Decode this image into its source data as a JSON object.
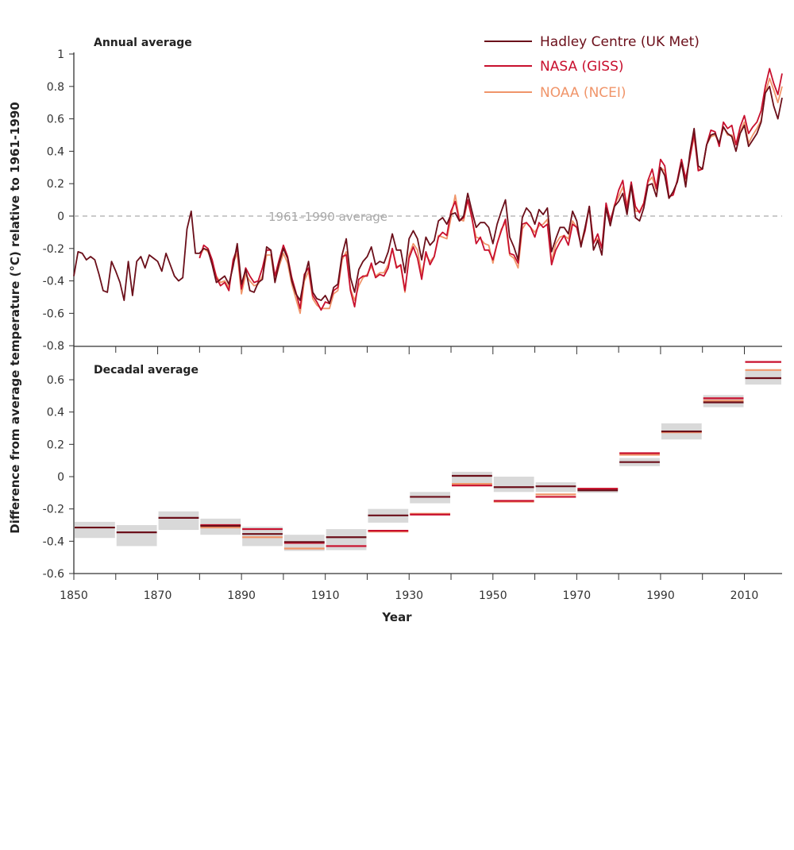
{
  "chart_data": [
    {
      "type": "line",
      "title": "Annual average",
      "xlabel": "Year",
      "ylabel": "Difference from average temperature (°C) relative to 1961-1990",
      "xlim": [
        1850,
        2019
      ],
      "ylim": [
        -0.8,
        1
      ],
      "yticks": [
        "1",
        "0.8",
        "0.6",
        "0.4",
        "0.2",
        "0",
        "-0.2",
        "-0.4",
        "-0.6",
        "-0.8"
      ],
      "reference_line": {
        "value": 0,
        "label": "1961–1990 average",
        "style": "dashed"
      },
      "legend_position": "top-right",
      "grid": false,
      "series": [
        {
          "name": "Hadley Centre (UK Met)",
          "color": "#6b0f1a",
          "start_year": 1850,
          "values": [
            -0.37,
            -0.22,
            -0.23,
            -0.27,
            -0.25,
            -0.27,
            -0.36,
            -0.46,
            -0.47,
            -0.28,
            -0.34,
            -0.41,
            -0.52,
            -0.28,
            -0.49,
            -0.28,
            -0.25,
            -0.32,
            -0.24,
            -0.26,
            -0.28,
            -0.34,
            -0.23,
            -0.3,
            -0.37,
            -0.4,
            -0.38,
            -0.08,
            0.03,
            -0.23,
            -0.23,
            -0.2,
            -0.21,
            -0.3,
            -0.41,
            -0.39,
            -0.37,
            -0.42,
            -0.31,
            -0.17,
            -0.42,
            -0.33,
            -0.46,
            -0.47,
            -0.41,
            -0.39,
            -0.19,
            -0.21,
            -0.41,
            -0.29,
            -0.2,
            -0.26,
            -0.4,
            -0.48,
            -0.52,
            -0.38,
            -0.28,
            -0.47,
            -0.51,
            -0.52,
            -0.49,
            -0.54,
            -0.44,
            -0.42,
            -0.24,
            -0.14,
            -0.38,
            -0.47,
            -0.33,
            -0.28,
            -0.25,
            -0.19,
            -0.3,
            -0.28,
            -0.29,
            -0.22,
            -0.11,
            -0.21,
            -0.21,
            -0.35,
            -0.14,
            -0.09,
            -0.14,
            -0.27,
            -0.13,
            -0.18,
            -0.15,
            -0.03,
            -0.01,
            -0.05,
            0.01,
            0.02,
            -0.03,
            0.0,
            0.14,
            0.03,
            -0.07,
            -0.04,
            -0.04,
            -0.07,
            -0.17,
            -0.05,
            0.03,
            0.1,
            -0.13,
            -0.19,
            -0.27,
            -0.01,
            0.05,
            0.02,
            -0.05,
            0.04,
            0.01,
            0.05,
            -0.22,
            -0.14,
            -0.07,
            -0.07,
            -0.11,
            0.03,
            -0.03,
            -0.19,
            -0.07,
            0.06,
            -0.21,
            -0.15,
            -0.24,
            0.05,
            -0.06,
            0.06,
            0.09,
            0.14,
            0.01,
            0.19,
            -0.01,
            -0.03,
            0.05,
            0.19,
            0.2,
            0.12,
            0.3,
            0.25,
            0.11,
            0.15,
            0.21,
            0.33,
            0.18,
            0.39,
            0.54,
            0.31,
            0.29,
            0.44,
            0.5,
            0.51,
            0.45,
            0.55,
            0.51,
            0.49,
            0.4,
            0.51,
            0.56,
            0.43,
            0.47,
            0.51,
            0.58,
            0.76,
            0.8,
            0.68,
            0.6,
            0.73
          ]
        },
        {
          "name": "NASA (GISS)",
          "color": "#c8102e",
          "start_year": 1880,
          "values": [
            -0.26,
            -0.18,
            -0.2,
            -0.27,
            -0.38,
            -0.43,
            -0.41,
            -0.46,
            -0.27,
            -0.2,
            -0.45,
            -0.32,
            -0.37,
            -0.41,
            -0.4,
            -0.32,
            -0.21,
            -0.21,
            -0.37,
            -0.27,
            -0.18,
            -0.25,
            -0.38,
            -0.47,
            -0.57,
            -0.36,
            -0.32,
            -0.49,
            -0.53,
            -0.58,
            -0.53,
            -0.54,
            -0.46,
            -0.44,
            -0.25,
            -0.24,
            -0.46,
            -0.56,
            -0.39,
            -0.37,
            -0.37,
            -0.29,
            -0.38,
            -0.36,
            -0.37,
            -0.32,
            -0.2,
            -0.32,
            -0.3,
            -0.46,
            -0.26,
            -0.19,
            -0.26,
            -0.39,
            -0.22,
            -0.3,
            -0.25,
            -0.13,
            -0.1,
            -0.12,
            0.03,
            0.09,
            -0.03,
            -0.01,
            0.1,
            -0.01,
            -0.17,
            -0.13,
            -0.21,
            -0.21,
            -0.27,
            -0.17,
            -0.09,
            -0.02,
            -0.23,
            -0.24,
            -0.29,
            -0.05,
            -0.04,
            -0.07,
            -0.13,
            -0.04,
            -0.07,
            -0.05,
            -0.3,
            -0.21,
            -0.16,
            -0.12,
            -0.18,
            -0.05,
            -0.07,
            -0.18,
            -0.09,
            0.06,
            -0.17,
            -0.11,
            -0.2,
            0.08,
            -0.03,
            0.06,
            0.16,
            0.22,
            0.04,
            0.21,
            0.06,
            0.02,
            0.08,
            0.22,
            0.29,
            0.17,
            0.35,
            0.31,
            0.12,
            0.13,
            0.22,
            0.35,
            0.23,
            0.36,
            0.51,
            0.28,
            0.29,
            0.44,
            0.53,
            0.52,
            0.43,
            0.58,
            0.54,
            0.56,
            0.44,
            0.55,
            0.62,
            0.51,
            0.55,
            0.58,
            0.65,
            0.8,
            0.91,
            0.82,
            0.75,
            0.88
          ]
        },
        {
          "name": "NOAA (NCEI)",
          "color": "#f0956a",
          "start_year": 1880,
          "values": [
            -0.25,
            -0.2,
            -0.22,
            -0.28,
            -0.37,
            -0.41,
            -0.4,
            -0.44,
            -0.29,
            -0.23,
            -0.48,
            -0.36,
            -0.4,
            -0.43,
            -0.42,
            -0.37,
            -0.24,
            -0.24,
            -0.4,
            -0.31,
            -0.23,
            -0.29,
            -0.42,
            -0.51,
            -0.6,
            -0.4,
            -0.34,
            -0.51,
            -0.55,
            -0.57,
            -0.57,
            -0.57,
            -0.48,
            -0.46,
            -0.27,
            -0.22,
            -0.45,
            -0.52,
            -0.43,
            -0.38,
            -0.36,
            -0.31,
            -0.37,
            -0.35,
            -0.35,
            -0.3,
            -0.2,
            -0.31,
            -0.31,
            -0.47,
            -0.24,
            -0.17,
            -0.21,
            -0.36,
            -0.24,
            -0.28,
            -0.25,
            -0.12,
            -0.13,
            -0.14,
            -0.01,
            0.13,
            -0.02,
            -0.03,
            0.1,
            -0.02,
            -0.13,
            -0.14,
            -0.17,
            -0.18,
            -0.29,
            -0.17,
            -0.08,
            -0.04,
            -0.24,
            -0.26,
            -0.32,
            -0.08,
            -0.04,
            -0.07,
            -0.1,
            -0.06,
            -0.05,
            -0.02,
            -0.28,
            -0.17,
            -0.13,
            -0.12,
            -0.14,
            -0.03,
            -0.07,
            -0.17,
            -0.07,
            0.05,
            -0.16,
            -0.14,
            -0.19,
            0.05,
            -0.04,
            0.07,
            0.12,
            0.18,
            0.07,
            0.2,
            0.03,
            0.03,
            0.08,
            0.21,
            0.24,
            0.16,
            0.3,
            0.28,
            0.11,
            0.15,
            0.21,
            0.33,
            0.21,
            0.36,
            0.49,
            0.29,
            0.29,
            0.44,
            0.49,
            0.5,
            0.45,
            0.55,
            0.5,
            0.5,
            0.44,
            0.52,
            0.58,
            0.45,
            0.5,
            0.54,
            0.59,
            0.76,
            0.85,
            0.78,
            0.7,
            0.8
          ]
        }
      ]
    },
    {
      "type": "bar",
      "title": "Decadal average",
      "xlabel": "Year",
      "xlim": [
        1850,
        2019
      ],
      "ylim": [
        -0.6,
        0.7
      ],
      "yticks": [
        "0.6",
        "0.4",
        "0.2",
        "0",
        "-0.2",
        "-0.4",
        "-0.6"
      ],
      "xticks": [
        "1850",
        "1870",
        "1890",
        "1910",
        "1930",
        "1950",
        "1970",
        "1990",
        "2010"
      ],
      "decades": [
        1850,
        1860,
        1870,
        1880,
        1890,
        1900,
        1910,
        1920,
        1930,
        1940,
        1950,
        1960,
        1970,
        1980,
        1990,
        2000,
        2010
      ],
      "uncertainty_color": "#d9d9d9",
      "hadley_uncertainty": [
        [
          -0.38,
          -0.28
        ],
        [
          -0.43,
          -0.3
        ],
        [
          -0.33,
          -0.215
        ],
        [
          -0.36,
          -0.26
        ],
        [
          -0.43,
          -0.31
        ],
        [
          -0.46,
          -0.36
        ],
        [
          -0.455,
          -0.325
        ],
        [
          -0.285,
          -0.2
        ],
        [
          -0.165,
          -0.095
        ],
        [
          -0.06,
          0.03
        ],
        [
          -0.095,
          0.0
        ],
        [
          -0.095,
          -0.035
        ],
        [
          -0.1,
          -0.07
        ],
        [
          0.065,
          0.115
        ],
        [
          0.23,
          0.33
        ],
        [
          0.43,
          0.505
        ],
        [
          0.57,
          0.655
        ]
      ],
      "series": [
        {
          "name": "Hadley Centre (UK Met)",
          "color": "#6b0f1a",
          "values": [
            -0.315,
            -0.345,
            -0.255,
            -0.305,
            -0.355,
            -0.405,
            -0.375,
            -0.24,
            -0.125,
            0.005,
            -0.065,
            -0.06,
            -0.085,
            0.09,
            0.28,
            0.46,
            0.61
          ]
        },
        {
          "name": "NASA (GISS)",
          "color": "#c8102e",
          "values": [
            null,
            null,
            null,
            -0.3,
            -0.325,
            -0.41,
            -0.43,
            -0.335,
            -0.235,
            -0.055,
            -0.15,
            -0.125,
            -0.075,
            0.145,
            0.28,
            0.485,
            0.71
          ]
        },
        {
          "name": "NOAA (NCEI)",
          "color": "#f0956a",
          "values": [
            null,
            null,
            null,
            -0.315,
            -0.375,
            -0.445,
            -0.43,
            -0.34,
            -0.23,
            -0.045,
            -0.155,
            -0.11,
            -0.075,
            0.135,
            0.275,
            0.47,
            0.66
          ]
        }
      ]
    }
  ]
}
